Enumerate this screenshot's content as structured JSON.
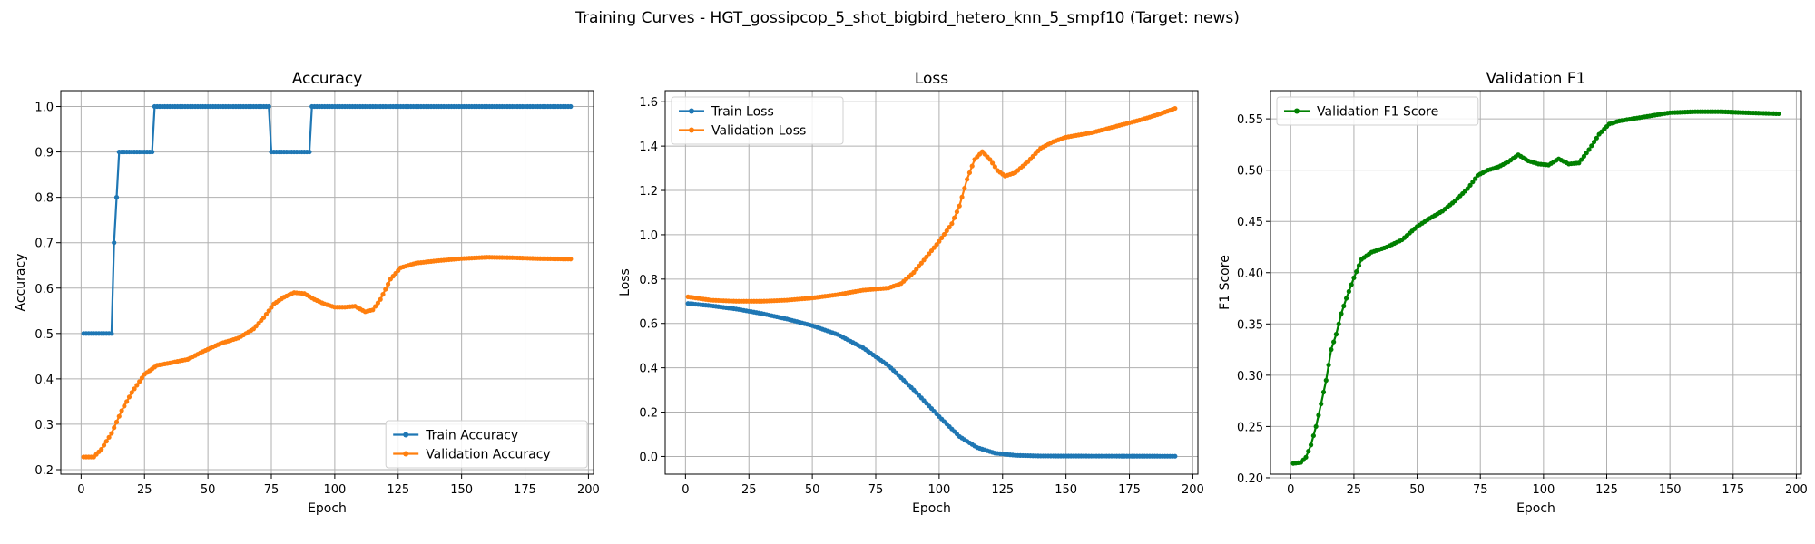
{
  "figure": {
    "suptitle": "Training Curves - HGT_gossipcop_5_shot_bigbird_hetero_knn_5_smpf10 (Target: news)"
  },
  "chart_data": [
    {
      "type": "line",
      "title": "Accuracy",
      "xlabel": "Epoch",
      "ylabel": "Accuracy",
      "xlim": [
        -8,
        202
      ],
      "ylim": [
        0.19,
        1.035
      ],
      "xticks": [
        0,
        25,
        50,
        75,
        100,
        125,
        150,
        175,
        200
      ],
      "yticks": [
        0.2,
        0.3,
        0.4,
        0.5,
        0.6,
        0.7,
        0.8,
        0.9,
        1.0
      ],
      "ytick_decimals": 1,
      "grid": true,
      "legend": "lower-right",
      "x_range": [
        1,
        193
      ],
      "series": [
        {
          "name": "Train Accuracy",
          "color": "#1f77b4",
          "keypoints": [
            [
              1,
              0.5
            ],
            [
              12,
              0.5
            ],
            [
              13,
              0.7
            ],
            [
              14,
              0.8
            ],
            [
              15,
              0.9
            ],
            [
              28,
              0.9
            ],
            [
              29,
              1.0
            ],
            [
              74,
              1.0
            ],
            [
              75,
              0.9
            ],
            [
              90,
              0.9
            ],
            [
              91,
              1.0
            ],
            [
              193,
              1.0
            ]
          ],
          "interp": "step"
        },
        {
          "name": "Validation Accuracy",
          "color": "#ff7f0e",
          "keypoints": [
            [
              1,
              0.228
            ],
            [
              5,
              0.228
            ],
            [
              8,
              0.245
            ],
            [
              12,
              0.28
            ],
            [
              16,
              0.33
            ],
            [
              20,
              0.37
            ],
            [
              25,
              0.41
            ],
            [
              30,
              0.43
            ],
            [
              35,
              0.435
            ],
            [
              42,
              0.443
            ],
            [
              48,
              0.46
            ],
            [
              55,
              0.478
            ],
            [
              62,
              0.49
            ],
            [
              68,
              0.51
            ],
            [
              72,
              0.535
            ],
            [
              76,
              0.565
            ],
            [
              80,
              0.58
            ],
            [
              84,
              0.59
            ],
            [
              88,
              0.588
            ],
            [
              92,
              0.575
            ],
            [
              96,
              0.565
            ],
            [
              100,
              0.558
            ],
            [
              104,
              0.558
            ],
            [
              108,
              0.56
            ],
            [
              112,
              0.548
            ],
            [
              115,
              0.552
            ],
            [
              118,
              0.575
            ],
            [
              122,
              0.62
            ],
            [
              126,
              0.645
            ],
            [
              132,
              0.655
            ],
            [
              140,
              0.66
            ],
            [
              150,
              0.665
            ],
            [
              160,
              0.668
            ],
            [
              170,
              0.667
            ],
            [
              180,
              0.665
            ],
            [
              193,
              0.664
            ]
          ],
          "interp": "linear"
        }
      ]
    },
    {
      "type": "line",
      "title": "Loss",
      "xlabel": "Epoch",
      "ylabel": "Loss",
      "xlim": [
        -8,
        202
      ],
      "ylim": [
        -0.08,
        1.65
      ],
      "xticks": [
        0,
        25,
        50,
        75,
        100,
        125,
        150,
        175,
        200
      ],
      "yticks": [
        0.0,
        0.2,
        0.4,
        0.6,
        0.8,
        1.0,
        1.2,
        1.4,
        1.6
      ],
      "ytick_decimals": 1,
      "grid": true,
      "legend": "top-left",
      "x_range": [
        1,
        193
      ],
      "series": [
        {
          "name": "Train Loss",
          "color": "#1f77b4",
          "keypoints": [
            [
              1,
              0.69
            ],
            [
              10,
              0.68
            ],
            [
              20,
              0.665
            ],
            [
              30,
              0.645
            ],
            [
              40,
              0.62
            ],
            [
              50,
              0.59
            ],
            [
              60,
              0.55
            ],
            [
              70,
              0.49
            ],
            [
              80,
              0.41
            ],
            [
              90,
              0.3
            ],
            [
              100,
              0.18
            ],
            [
              108,
              0.09
            ],
            [
              115,
              0.04
            ],
            [
              122,
              0.015
            ],
            [
              130,
              0.005
            ],
            [
              140,
              0.002
            ],
            [
              193,
              0.001
            ]
          ],
          "interp": "linear"
        },
        {
          "name": "Validation Loss",
          "color": "#ff7f0e",
          "keypoints": [
            [
              1,
              0.72
            ],
            [
              10,
              0.705
            ],
            [
              20,
              0.7
            ],
            [
              30,
              0.7
            ],
            [
              40,
              0.705
            ],
            [
              50,
              0.715
            ],
            [
              60,
              0.73
            ],
            [
              70,
              0.75
            ],
            [
              80,
              0.76
            ],
            [
              85,
              0.78
            ],
            [
              90,
              0.83
            ],
            [
              95,
              0.9
            ],
            [
              100,
              0.97
            ],
            [
              105,
              1.05
            ],
            [
              108,
              1.13
            ],
            [
              111,
              1.25
            ],
            [
              114,
              1.34
            ],
            [
              117,
              1.375
            ],
            [
              120,
              1.34
            ],
            [
              123,
              1.29
            ],
            [
              126,
              1.265
            ],
            [
              130,
              1.28
            ],
            [
              135,
              1.33
            ],
            [
              140,
              1.39
            ],
            [
              145,
              1.42
            ],
            [
              150,
              1.44
            ],
            [
              160,
              1.46
            ],
            [
              170,
              1.49
            ],
            [
              180,
              1.52
            ],
            [
              187,
              1.545
            ],
            [
              193,
              1.57
            ]
          ],
          "interp": "linear"
        }
      ]
    },
    {
      "type": "line",
      "title": "Validation F1",
      "xlabel": "Epoch",
      "ylabel": "F1 Score",
      "xlim": [
        -8,
        202
      ],
      "ylim": [
        0.2035,
        0.5775
      ],
      "xticks": [
        0,
        25,
        50,
        75,
        100,
        125,
        150,
        175,
        200
      ],
      "yticks": [
        0.2,
        0.25,
        0.3,
        0.35,
        0.4,
        0.45,
        0.5,
        0.55
      ],
      "ytick_decimals": 2,
      "grid": true,
      "legend": "top-left",
      "x_range": [
        1,
        193
      ],
      "series": [
        {
          "name": "Validation F1 Score",
          "color": "#008000",
          "keypoints": [
            [
              1,
              0.214
            ],
            [
              4,
              0.215
            ],
            [
              6,
              0.22
            ],
            [
              8,
              0.232
            ],
            [
              10,
              0.25
            ],
            [
              12,
              0.272
            ],
            [
              14,
              0.295
            ],
            [
              16,
              0.325
            ],
            [
              18,
              0.34
            ],
            [
              20,
              0.36
            ],
            [
              22,
              0.375
            ],
            [
              25,
              0.395
            ],
            [
              28,
              0.413
            ],
            [
              32,
              0.42
            ],
            [
              38,
              0.425
            ],
            [
              44,
              0.432
            ],
            [
              50,
              0.445
            ],
            [
              55,
              0.453
            ],
            [
              60,
              0.46
            ],
            [
              65,
              0.47
            ],
            [
              70,
              0.482
            ],
            [
              74,
              0.495
            ],
            [
              78,
              0.5
            ],
            [
              82,
              0.503
            ],
            [
              86,
              0.508
            ],
            [
              90,
              0.515
            ],
            [
              94,
              0.509
            ],
            [
              98,
              0.506
            ],
            [
              102,
              0.505
            ],
            [
              106,
              0.511
            ],
            [
              110,
              0.506
            ],
            [
              114,
              0.507
            ],
            [
              118,
              0.52
            ],
            [
              122,
              0.535
            ],
            [
              126,
              0.545
            ],
            [
              130,
              0.548
            ],
            [
              135,
              0.55
            ],
            [
              140,
              0.552
            ],
            [
              150,
              0.556
            ],
            [
              160,
              0.557
            ],
            [
              170,
              0.557
            ],
            [
              180,
              0.556
            ],
            [
              193,
              0.555
            ]
          ],
          "interp": "linear"
        }
      ]
    }
  ]
}
